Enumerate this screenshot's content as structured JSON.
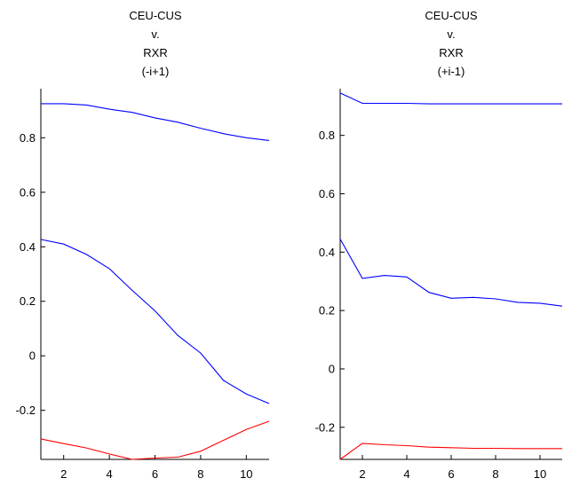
{
  "chart_data": [
    {
      "type": "line",
      "title_lines": [
        "CEU-CUS",
        "v.",
        "RXR",
        "(-i+1)"
      ],
      "xlabel": "",
      "ylabel": "",
      "xlim": [
        1,
        11
      ],
      "ylim": [
        -0.38,
        0.98
      ],
      "xticks": [
        2,
        4,
        6,
        8,
        10
      ],
      "yticks": [
        -0.2,
        0,
        0.2,
        0.4,
        0.6,
        0.8
      ],
      "ytick_labels": [
        "-0.2",
        "0",
        "0.2",
        "0.4",
        "0.6",
        "0.8"
      ],
      "grid": false,
      "x": [
        1,
        2,
        3,
        4,
        5,
        6,
        7,
        8,
        9,
        10,
        11
      ],
      "series": [
        {
          "color": "#0000ff",
          "values": [
            0.925,
            0.925,
            0.92,
            0.905,
            0.893,
            0.873,
            0.857,
            0.835,
            0.815,
            0.8,
            0.79
          ]
        },
        {
          "color": "#0000ff",
          "values": [
            0.427,
            0.41,
            0.372,
            0.32,
            0.24,
            0.165,
            0.075,
            0.01,
            -0.09,
            -0.14,
            -0.175
          ]
        },
        {
          "color": "#ff0000",
          "values": [
            -0.305,
            -0.322,
            -0.338,
            -0.36,
            -0.38,
            -0.375,
            -0.372,
            -0.35,
            -0.31,
            -0.27,
            -0.24
          ]
        }
      ]
    },
    {
      "type": "line",
      "title_lines": [
        "CEU-CUS",
        "v.",
        "RXR",
        "(+i-1)"
      ],
      "xlabel": "",
      "ylabel": "",
      "xlim": [
        1,
        11
      ],
      "ylim": [
        -0.31,
        0.96
      ],
      "xticks": [
        2,
        4,
        6,
        8,
        10
      ],
      "yticks": [
        -0.2,
        0,
        0.2,
        0.4,
        0.6,
        0.8
      ],
      "ytick_labels": [
        "-0.2",
        "0",
        "0.2",
        "0.4",
        "0.6",
        "0.8"
      ],
      "grid": false,
      "x": [
        1,
        2,
        3,
        4,
        5,
        6,
        7,
        8,
        9,
        10,
        11
      ],
      "series": [
        {
          "color": "#0000ff",
          "values": [
            0.945,
            0.91,
            0.91,
            0.91,
            0.908,
            0.908,
            0.908,
            0.908,
            0.908,
            0.908,
            0.908
          ]
        },
        {
          "color": "#0000ff",
          "values": [
            0.445,
            0.31,
            0.32,
            0.315,
            0.262,
            0.242,
            0.245,
            0.24,
            0.228,
            0.225,
            0.215
          ]
        },
        {
          "color": "#ff0000",
          "values": [
            -0.31,
            -0.255,
            -0.26,
            -0.263,
            -0.268,
            -0.27,
            -0.272,
            -0.272,
            -0.273,
            -0.273,
            -0.273
          ]
        }
      ]
    }
  ]
}
